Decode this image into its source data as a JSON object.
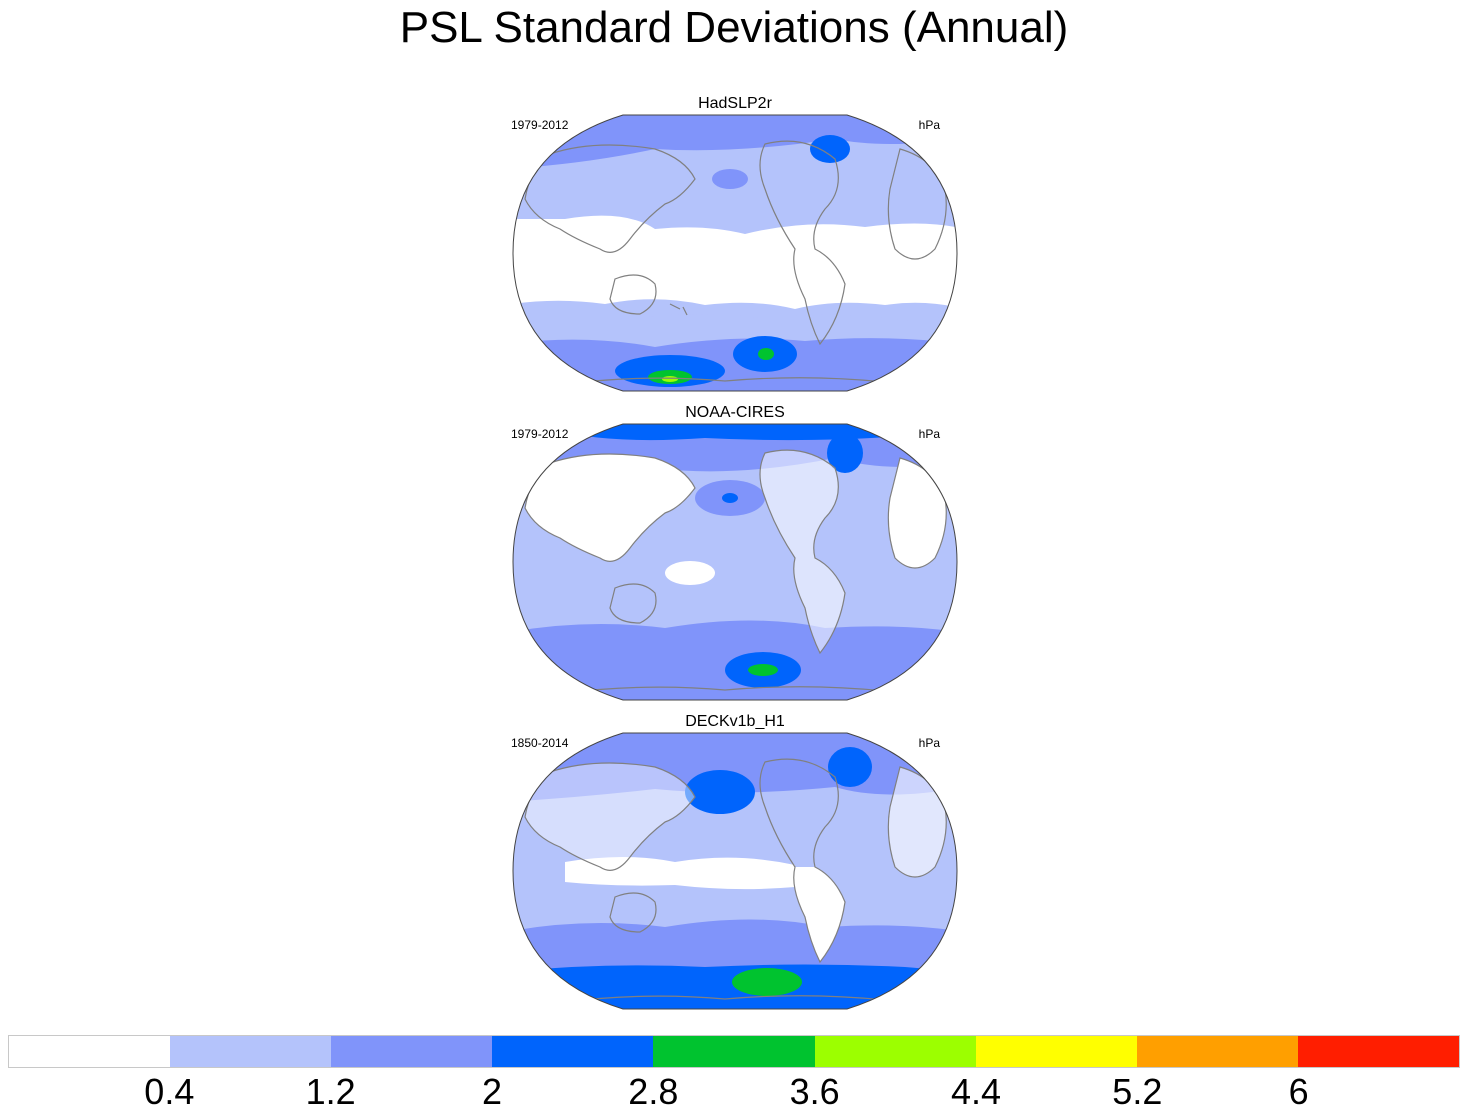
{
  "title": "PSL Standard Deviations (Annual)",
  "panels": [
    {
      "title": "HadSLP2r",
      "period": "1979-2012",
      "units": "hPa"
    },
    {
      "title": "NOAA-CIRES",
      "period": "1979-2012",
      "units": "hPa"
    },
    {
      "title": "DECKv1b_H1",
      "period": "1850-2014",
      "units": "hPa"
    }
  ],
  "colorbar": {
    "colors": [
      "#ffffff",
      "#b4c3fb",
      "#8094fa",
      "#0064fc",
      "#00c32f",
      "#9cff00",
      "#ffff00",
      "#ff9f00",
      "#ff1e00"
    ],
    "labels": [
      "0.4",
      "1.2",
      "2",
      "2.8",
      "3.6",
      "4.4",
      "5.2",
      "6"
    ]
  },
  "map_style": {
    "projection": "Robinson, Pacific-centered",
    "land_outline_color": "#808080"
  }
}
